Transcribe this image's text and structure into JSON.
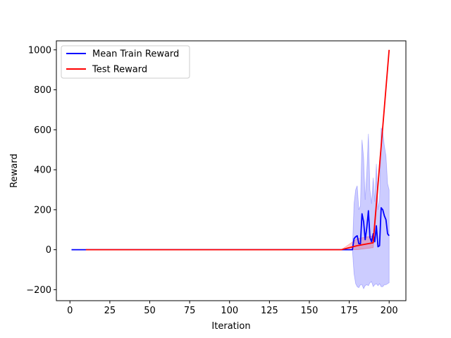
{
  "chart_data": {
    "type": "line",
    "title": "",
    "xlabel": "Iteration",
    "ylabel": "Reward",
    "xlim": [
      -8.5,
      210.5
    ],
    "ylim": [
      -255,
      1045
    ],
    "xticks": [
      0,
      25,
      50,
      75,
      100,
      125,
      150,
      175,
      200
    ],
    "yticks": [
      -200,
      0,
      200,
      400,
      600,
      800,
      1000
    ],
    "ytick_labels": [
      "−200",
      "0",
      "200",
      "400",
      "600",
      "800",
      "1000"
    ],
    "grid": false,
    "legend": {
      "placement": "top-left"
    },
    "series": [
      {
        "name": "Mean Train Reward",
        "color": "#0000ff",
        "band_color": "#0000ff",
        "band_opacity": 0.2,
        "x": [
          1,
          10,
          20,
          30,
          40,
          50,
          60,
          70,
          80,
          90,
          100,
          110,
          120,
          130,
          140,
          150,
          160,
          170,
          177,
          178,
          179,
          180,
          181,
          182,
          183,
          184,
          185,
          186,
          187,
          188,
          189,
          190,
          191,
          192,
          193,
          194,
          195,
          196,
          197,
          198,
          199,
          200
        ],
        "y": [
          0,
          0,
          0,
          0,
          0,
          0,
          0,
          0,
          0,
          0,
          0,
          0,
          0,
          0,
          0,
          0,
          0,
          0,
          0,
          55,
          65,
          70,
          30,
          30,
          180,
          140,
          50,
          110,
          195,
          60,
          40,
          80,
          40,
          120,
          15,
          20,
          210,
          200,
          170,
          150,
          80,
          70
        ],
        "lo": [
          0,
          0,
          0,
          0,
          0,
          0,
          0,
          0,
          0,
          0,
          0,
          0,
          0,
          0,
          0,
          0,
          0,
          0,
          0,
          -120,
          -170,
          -185,
          -190,
          -175,
          -175,
          -195,
          -180,
          -175,
          -180,
          -165,
          -160,
          -185,
          -175,
          -170,
          -180,
          -170,
          -185,
          -185,
          -175,
          -175,
          -170,
          -165
        ],
        "hi": [
          0,
          0,
          0,
          0,
          0,
          0,
          0,
          0,
          0,
          0,
          0,
          0,
          0,
          0,
          0,
          0,
          0,
          0,
          0,
          230,
          300,
          320,
          200,
          220,
          550,
          460,
          250,
          390,
          580,
          300,
          230,
          360,
          240,
          430,
          200,
          250,
          610,
          590,
          520,
          470,
          330,
          300
        ]
      },
      {
        "name": "Test Reward",
        "color": "#ff0000",
        "band_color": "#ff0000",
        "band_opacity": 0.2,
        "x": [
          10,
          20,
          30,
          40,
          50,
          60,
          70,
          80,
          90,
          100,
          110,
          120,
          130,
          140,
          150,
          160,
          170,
          180,
          190,
          200
        ],
        "y": [
          0,
          0,
          0,
          0,
          0,
          0,
          0,
          0,
          0,
          0,
          0,
          0,
          0,
          0,
          0,
          0,
          0,
          20,
          35,
          1000
        ],
        "lo": [
          0,
          0,
          0,
          0,
          0,
          0,
          0,
          0,
          0,
          0,
          0,
          0,
          0,
          0,
          0,
          0,
          0,
          0,
          10,
          1000
        ],
        "hi": [
          0,
          0,
          0,
          0,
          0,
          0,
          0,
          0,
          0,
          0,
          0,
          0,
          0,
          0,
          0,
          0,
          0,
          55,
          70,
          1000
        ]
      }
    ]
  }
}
